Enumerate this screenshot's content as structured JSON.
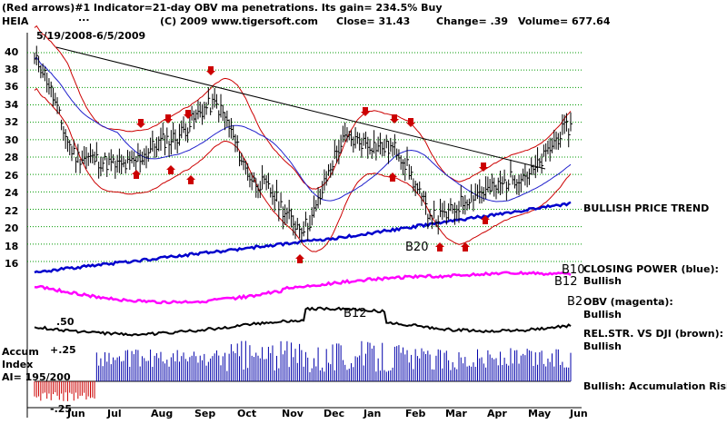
{
  "header": {
    "line1_left": "(Red arrows)#1 Indicator=21-day OBV ma penetrations.  Its gain= 234.5% Buy",
    "line2_left": "HEIA",
    "line2_mid": "(C) 2009  www.tigersoft.com",
    "close_text": "Close=   31.43",
    "change_text": "Change= .39",
    "volume_text": "Volume= 677.64",
    "dots": "...",
    "date_range": "5/19/2008-6/5/2009"
  },
  "y_axis": {
    "ticks": [
      "40",
      "38",
      "36",
      "34",
      "32",
      "30",
      "28",
      "26",
      "24",
      "22",
      "20",
      "18",
      "16"
    ]
  },
  "x_axis": {
    "months": [
      "Jun",
      "Jul",
      "Aug",
      "Sep",
      "Oct",
      "Nov",
      "Dec",
      "Jan",
      "Feb",
      "Mar",
      "Apr",
      "May",
      "Jun"
    ]
  },
  "right_panel": {
    "trend": "BULLISH PRICE TREND",
    "closing_power": "CLOSING POWER (blue):",
    "closing_power_value": "Bullish",
    "obv": "OBV (magenta):",
    "obv_value": "Bullish",
    "relstr": "REL.STR. VS DJI (brown):",
    "relstr_value": "Bullish",
    "accum_status": "Bullish: Accumulation Rising"
  },
  "accum_panel": {
    "title1": "Accum",
    "title2": "Index",
    "ai": "AI= 195/200",
    "level_hi": ".50",
    "level_mid": "+.25",
    "level_lo": "-.25"
  },
  "signals": {
    "b20": "B20",
    "b12a": "B12",
    "b10": "B10",
    "b12b": "B12",
    "b2": "B2",
    "b12c": "B12"
  },
  "colors": {
    "price": "#000000",
    "band": "#cc0000",
    "ma50": "#2020cc",
    "closing_power": "#0000cc",
    "obv": "#ff00ff",
    "relstr": "#000000",
    "accum_pos": "#0000aa",
    "accum_neg": "#cc0000",
    "grid": "#009900",
    "arrow": "#cc0000"
  },
  "chart_data": {
    "type": "line",
    "x": [
      "Jun",
      "Jul",
      "Aug",
      "Sep",
      "Oct",
      "Nov",
      "Dec",
      "Jan",
      "Feb",
      "Mar",
      "Apr",
      "May",
      "Jun"
    ],
    "ylim": [
      15,
      41
    ],
    "series": [
      {
        "values": [
          39,
          28,
          27,
          30,
          34,
          25,
          20,
          30,
          29,
          21,
          24,
          26,
          31.4
        ]
      }
    ],
    "accum": {
      "ylim": [
        -0.25,
        0.6
      ]
    }
  }
}
